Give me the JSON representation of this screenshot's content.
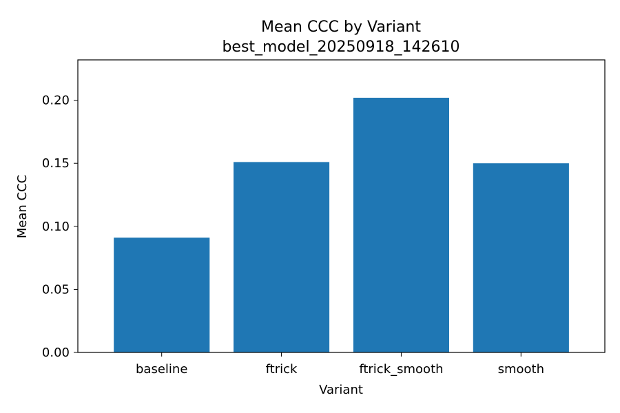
{
  "chart_data": {
    "type": "bar",
    "title": "Mean CCC by Variant",
    "subtitle": "best_model_20250918_142610",
    "xlabel": "Variant",
    "ylabel": "Mean CCC",
    "categories": [
      "baseline",
      "ftrick",
      "ftrick_smooth",
      "smooth"
    ],
    "values": [
      0.091,
      0.151,
      0.202,
      0.15
    ],
    "ylim": [
      0,
      0.232
    ],
    "yticks": [
      0.0,
      0.05,
      0.1,
      0.15,
      0.2
    ],
    "ytick_labels": [
      "0.00",
      "0.05",
      "0.10",
      "0.15",
      "0.20"
    ],
    "bar_color": "#1f77b4",
    "grid": false,
    "legend": "none"
  }
}
